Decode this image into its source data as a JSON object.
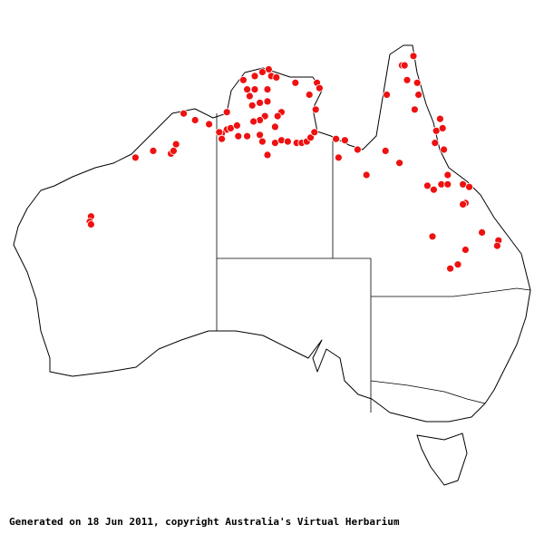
{
  "map": {
    "region": "Australia",
    "point_color": "#ee1111",
    "points_lonlat": [
      [
        144.5,
        -11.5
      ],
      [
        143.6,
        -12.2
      ],
      [
        143.8,
        -12.2
      ],
      [
        144.0,
        -13.3
      ],
      [
        144.8,
        -13.5
      ],
      [
        142.4,
        -14.4
      ],
      [
        144.9,
        -14.4
      ],
      [
        144.6,
        -15.5
      ],
      [
        146.6,
        -16.2
      ],
      [
        146.3,
        -17.1
      ],
      [
        146.8,
        -16.9
      ],
      [
        146.2,
        -18.0
      ],
      [
        146.9,
        -18.5
      ],
      [
        142.3,
        -18.6
      ],
      [
        143.4,
        -19.5
      ],
      [
        147.2,
        -20.4
      ],
      [
        145.6,
        -21.2
      ],
      [
        146.1,
        -21.5
      ],
      [
        146.7,
        -21.1
      ],
      [
        147.2,
        -21.1
      ],
      [
        148.4,
        -21.1
      ],
      [
        148.9,
        -21.3
      ],
      [
        148.6,
        -22.5
      ],
      [
        148.4,
        -22.6
      ],
      [
        146.0,
        -25.0
      ],
      [
        149.9,
        -24.7
      ],
      [
        151.2,
        -25.3
      ],
      [
        151.1,
        -25.7
      ],
      [
        148.6,
        -26.0
      ],
      [
        148.0,
        -27.1
      ],
      [
        147.4,
        -27.4
      ],
      [
        140.8,
        -20.4
      ],
      [
        140.1,
        -18.5
      ],
      [
        139.1,
        -17.8
      ],
      [
        138.4,
        -17.7
      ],
      [
        138.6,
        -19.1
      ],
      [
        133.1,
        -12.5
      ],
      [
        132.6,
        -12.7
      ],
      [
        133.3,
        -13.0
      ],
      [
        133.7,
        -13.1
      ],
      [
        132.0,
        -13.0
      ],
      [
        131.1,
        -13.3
      ],
      [
        131.4,
        -14.0
      ],
      [
        132.0,
        -14.0
      ],
      [
        133.0,
        -14.0
      ],
      [
        131.6,
        -14.5
      ],
      [
        132.4,
        -15.0
      ],
      [
        133.0,
        -14.9
      ],
      [
        131.8,
        -15.2
      ],
      [
        135.2,
        -13.5
      ],
      [
        136.3,
        -14.4
      ],
      [
        136.9,
        -13.5
      ],
      [
        137.1,
        -13.9
      ],
      [
        136.8,
        -15.5
      ],
      [
        134.1,
        -15.7
      ],
      [
        133.8,
        -16.0
      ],
      [
        132.8,
        -16.0
      ],
      [
        132.4,
        -16.3
      ],
      [
        131.9,
        -16.4
      ],
      [
        133.6,
        -16.8
      ],
      [
        132.4,
        -17.4
      ],
      [
        132.6,
        -17.9
      ],
      [
        133.6,
        -18.0
      ],
      [
        134.1,
        -17.8
      ],
      [
        134.6,
        -17.9
      ],
      [
        135.3,
        -18.0
      ],
      [
        135.7,
        -18.0
      ],
      [
        136.1,
        -17.9
      ],
      [
        136.4,
        -17.6
      ],
      [
        136.7,
        -17.2
      ],
      [
        133.0,
        -18.9
      ],
      [
        131.4,
        -17.5
      ],
      [
        130.7,
        -17.5
      ],
      [
        129.8,
        -17.0
      ],
      [
        130.1,
        -16.9
      ],
      [
        130.6,
        -16.7
      ],
      [
        129.8,
        -15.7
      ],
      [
        129.4,
        -17.3
      ],
      [
        129.2,
        -17.2
      ],
      [
        129.4,
        -17.7
      ],
      [
        128.4,
        -16.6
      ],
      [
        127.3,
        -16.3
      ],
      [
        126.4,
        -15.8
      ],
      [
        125.8,
        -18.1
      ],
      [
        125.4,
        -18.8
      ],
      [
        125.6,
        -18.6
      ],
      [
        124.0,
        -18.6
      ],
      [
        122.6,
        -19.1
      ],
      [
        119.1,
        -23.5
      ],
      [
        119.0,
        -23.9
      ],
      [
        119.1,
        -24.1
      ]
    ]
  },
  "footer": {
    "caption": "Generated on 18 Jun 2011, copyright Australia's Virtual Herbarium"
  }
}
